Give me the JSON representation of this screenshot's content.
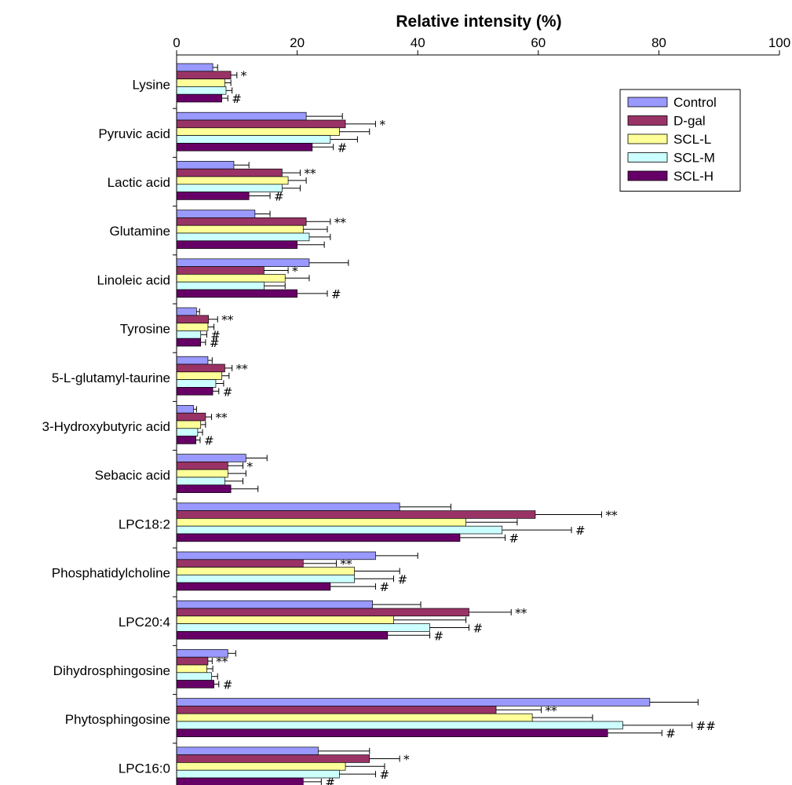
{
  "chart_data": {
    "type": "bar",
    "orientation": "horizontal",
    "title": "",
    "xlabel": "Relative intensity (%)",
    "ylabel": "",
    "xlim": [
      0,
      100
    ],
    "xticks": [
      0,
      20,
      40,
      60,
      80,
      100
    ],
    "grid": false,
    "legend_position": "top-right",
    "categories": [
      "Lysine",
      "Pyruvic acid",
      "Lactic acid",
      "Glutamine",
      "Linoleic acid",
      "Tyrosine",
      "5-L-glutamyl-taurine",
      "3-Hydroxybutyric acid",
      "Sebacic acid",
      "LPC18:2",
      "Phosphatidylcholine",
      "LPC20:4",
      "Dihydrosphingosine",
      "Phytosphingosine",
      "LPC16:0"
    ],
    "series": [
      {
        "name": "Control",
        "color": "#9999ff",
        "values": [
          6.0,
          21.5,
          9.5,
          13.0,
          22.0,
          3.3,
          5.2,
          2.8,
          11.5,
          37.0,
          33.0,
          32.5,
          8.5,
          78.5,
          23.5
        ],
        "errors": [
          0.8,
          6.0,
          2.5,
          2.5,
          6.5,
          0.5,
          0.7,
          0.5,
          3.5,
          8.5,
          7.0,
          8.0,
          1.3,
          8.0,
          8.5
        ],
        "sig": [
          "",
          "",
          "",
          "",
          "",
          "",
          "",
          "",
          "",
          "",
          "",
          "",
          "",
          "",
          ""
        ]
      },
      {
        "name": "D-gal",
        "color": "#993366",
        "values": [
          9.0,
          28.0,
          17.5,
          21.5,
          14.5,
          5.3,
          8.0,
          4.8,
          8.5,
          59.5,
          21.0,
          48.5,
          5.2,
          53.0,
          32.0
        ],
        "errors": [
          1.0,
          5.0,
          3.0,
          4.0,
          4.0,
          1.5,
          1.2,
          1.0,
          2.5,
          11.0,
          5.5,
          7.0,
          0.7,
          7.5,
          5.0
        ],
        "sig": [
          "*",
          "*",
          "**",
          "**",
          "*",
          "**",
          "**",
          "**",
          "*",
          "**",
          "**",
          "**",
          "**",
          "**",
          "*"
        ]
      },
      {
        "name": "SCL-L",
        "color": "#ffff99",
        "values": [
          8.0,
          27.0,
          18.5,
          21.0,
          18.0,
          5.2,
          7.5,
          4.0,
          8.5,
          48.0,
          29.5,
          36.0,
          5.0,
          59.0,
          28.0
        ],
        "errors": [
          1.0,
          5.0,
          3.0,
          4.0,
          4.0,
          1.0,
          1.2,
          0.8,
          3.0,
          8.5,
          7.5,
          12.0,
          1.0,
          10.0,
          6.5
        ],
        "sig": [
          "",
          "",
          "",
          "",
          "",
          "",
          "",
          "",
          "",
          "",
          "",
          "",
          "",
          "",
          ""
        ]
      },
      {
        "name": "SCL-M",
        "color": "#ccffff",
        "values": [
          8.2,
          25.5,
          17.5,
          22.0,
          14.5,
          4.0,
          6.5,
          3.5,
          8.0,
          54.0,
          29.5,
          42.0,
          5.8,
          74.0,
          27.0
        ],
        "errors": [
          1.0,
          4.5,
          3.0,
          3.5,
          3.5,
          1.0,
          1.3,
          0.8,
          3.0,
          11.5,
          6.5,
          6.5,
          1.0,
          11.5,
          6.0
        ],
        "sig": [
          "",
          "",
          "",
          "",
          "",
          "#",
          "",
          "",
          "",
          "#",
          "#",
          "#",
          "",
          "##",
          "#"
        ]
      },
      {
        "name": "SCL-H",
        "color": "#660066",
        "values": [
          7.5,
          22.5,
          12.0,
          20.0,
          20.0,
          4.0,
          6.0,
          3.2,
          9.0,
          47.0,
          25.5,
          35.0,
          6.2,
          71.5,
          21.0
        ],
        "errors": [
          1.0,
          3.5,
          3.5,
          4.5,
          5.0,
          0.8,
          1.0,
          0.7,
          4.5,
          7.5,
          7.5,
          7.0,
          0.8,
          9.0,
          3.0
        ],
        "sig": [
          "#",
          "#",
          "#",
          "",
          "#",
          "#",
          "#",
          "#",
          "",
          "#",
          "#",
          "#",
          "#",
          "#",
          "#"
        ]
      }
    ]
  }
}
